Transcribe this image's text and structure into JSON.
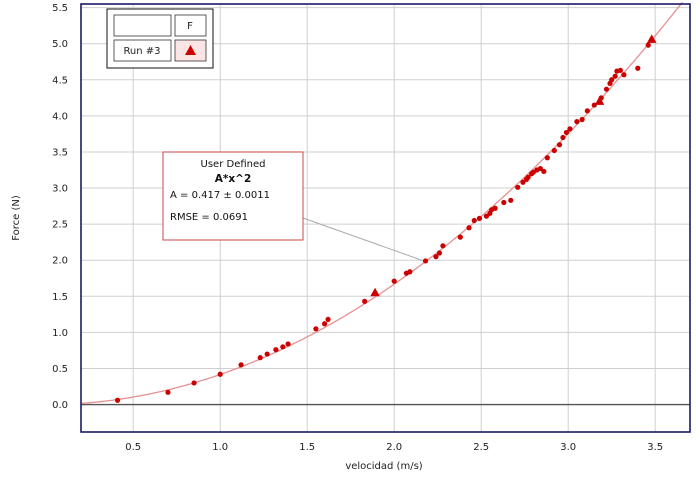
{
  "colors": {
    "data": "#cc0000",
    "curve": "#e89090",
    "grid": "#cfcfcf",
    "frame": "#1a1a66",
    "zero_line": "#555555",
    "annotation_border": "#c84a4a"
  },
  "legend": {
    "header_label": "F",
    "run_label": "Run #3",
    "marker_icon": "triangle-icon"
  },
  "fit_box": {
    "title": "User Defined",
    "equation": "A*x^2",
    "param": "A = 0.417 ± 0.0011",
    "rmse": "RMSE = 0.0691"
  },
  "chart_data": {
    "type": "scatter",
    "title": "",
    "xlabel": "velocidad (m/s)",
    "ylabel": "Force (N)",
    "xlim": [
      0.2,
      3.7
    ],
    "ylim": [
      -0.38,
      5.55
    ],
    "x_ticks": [
      "0.5",
      "1.0",
      "1.5",
      "2.0",
      "2.5",
      "3.0",
      "3.5"
    ],
    "y_ticks": [
      "0.0",
      "0.5",
      "1.0",
      "1.5",
      "2.0",
      "2.5",
      "3.0",
      "3.5",
      "4.0",
      "4.5",
      "5.0",
      "5.5"
    ],
    "grid": true,
    "legend_position": "top-left",
    "fit": {
      "model": "A*x^2",
      "A": 0.417
    },
    "series": [
      {
        "name": "Run #3",
        "points": [
          [
            0.41,
            0.06
          ],
          [
            0.7,
            0.17
          ],
          [
            0.85,
            0.3
          ],
          [
            1.0,
            0.42
          ],
          [
            1.12,
            0.55
          ],
          [
            1.23,
            0.65
          ],
          [
            1.27,
            0.7
          ],
          [
            1.32,
            0.76
          ],
          [
            1.36,
            0.8
          ],
          [
            1.39,
            0.84
          ],
          [
            1.55,
            1.05
          ],
          [
            1.6,
            1.12
          ],
          [
            1.62,
            1.18
          ],
          [
            1.83,
            1.43
          ],
          [
            1.89,
            1.55
          ],
          [
            2.0,
            1.71
          ],
          [
            2.07,
            1.82
          ],
          [
            2.09,
            1.84
          ],
          [
            2.18,
            1.99
          ],
          [
            2.24,
            2.05
          ],
          [
            2.26,
            2.1
          ],
          [
            2.28,
            2.2
          ],
          [
            2.38,
            2.32
          ],
          [
            2.43,
            2.45
          ],
          [
            2.46,
            2.55
          ],
          [
            2.49,
            2.58
          ],
          [
            2.53,
            2.61
          ],
          [
            2.55,
            2.65
          ],
          [
            2.56,
            2.7
          ],
          [
            2.58,
            2.72
          ],
          [
            2.63,
            2.8
          ],
          [
            2.67,
            2.83
          ],
          [
            2.71,
            3.01
          ],
          [
            2.74,
            3.08
          ],
          [
            2.76,
            3.12
          ],
          [
            2.77,
            3.15
          ],
          [
            2.79,
            3.2
          ],
          [
            2.8,
            3.22
          ],
          [
            2.82,
            3.25
          ],
          [
            2.84,
            3.27
          ],
          [
            2.86,
            3.23
          ],
          [
            2.88,
            3.42
          ],
          [
            2.92,
            3.52
          ],
          [
            2.95,
            3.6
          ],
          [
            2.97,
            3.7
          ],
          [
            2.99,
            3.77
          ],
          [
            3.01,
            3.82
          ],
          [
            3.05,
            3.92
          ],
          [
            3.08,
            3.95
          ],
          [
            3.11,
            4.07
          ],
          [
            3.15,
            4.15
          ],
          [
            3.18,
            4.2
          ],
          [
            3.19,
            4.25
          ],
          [
            3.22,
            4.37
          ],
          [
            3.24,
            4.45
          ],
          [
            3.25,
            4.5
          ],
          [
            3.27,
            4.55
          ],
          [
            3.28,
            4.62
          ],
          [
            3.3,
            4.63
          ],
          [
            3.32,
            4.57
          ],
          [
            3.4,
            4.66
          ],
          [
            3.46,
            4.98
          ],
          [
            3.48,
            5.06
          ]
        ],
        "triangle_points": [
          [
            1.89,
            1.55
          ],
          [
            3.18,
            4.2
          ],
          [
            3.48,
            5.06
          ]
        ]
      }
    ]
  }
}
